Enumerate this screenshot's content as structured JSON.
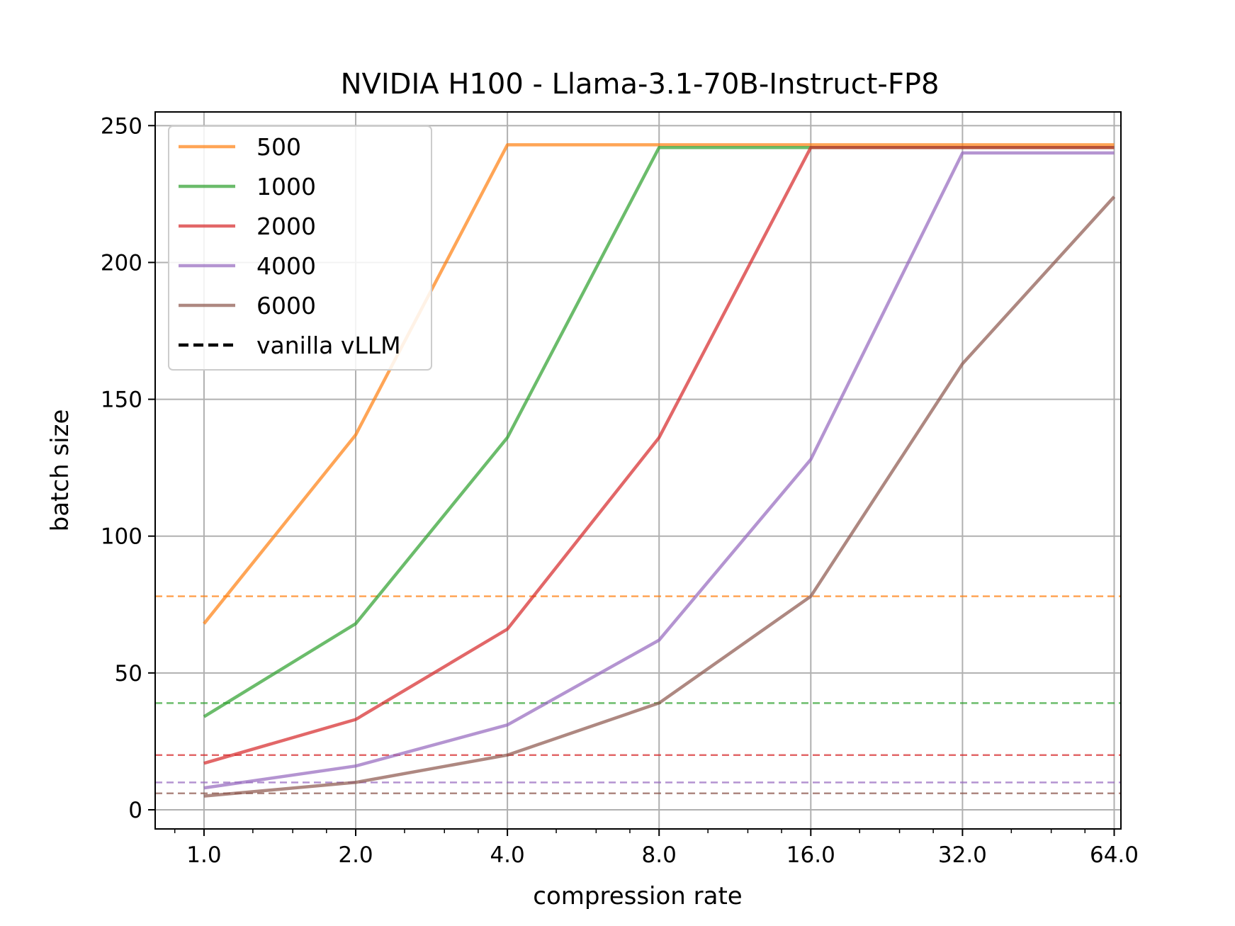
{
  "chart_data": {
    "type": "line",
    "title": "NVIDIA H100 - Llama-3.1-70B-Instruct-FP8",
    "xlabel": "compression rate",
    "ylabel": "batch size",
    "x_scale": "log2",
    "x": [
      1.0,
      2.0,
      4.0,
      8.0,
      16.0,
      32.0,
      64.0
    ],
    "x_tick_labels": [
      "1.0",
      "2.0",
      "4.0",
      "8.0",
      "16.0",
      "32.0",
      "64.0"
    ],
    "y_ticks": [
      0,
      50,
      100,
      150,
      200,
      250
    ],
    "y_tick_labels": [
      "0",
      "50",
      "100",
      "150",
      "200",
      "250"
    ],
    "xlim": [
      0.8,
      66
    ],
    "ylim": [
      -7,
      255
    ],
    "grid": true,
    "legend_position": "upper-left",
    "series": [
      {
        "name": "500",
        "color": "#ff7f0e",
        "values": [
          68,
          137,
          243,
          243,
          243,
          243,
          243
        ],
        "baseline": 78
      },
      {
        "name": "1000",
        "color": "#2ca02c",
        "values": [
          34,
          68,
          136,
          242,
          242,
          242,
          242
        ],
        "baseline": 39
      },
      {
        "name": "2000",
        "color": "#d62728",
        "values": [
          17,
          33,
          66,
          136,
          242,
          242,
          242
        ],
        "baseline": 20
      },
      {
        "name": "4000",
        "color": "#9467bd",
        "values": [
          8,
          16,
          31,
          62,
          128,
          240,
          240
        ],
        "baseline": 10
      },
      {
        "name": "6000",
        "color": "#8c564b",
        "values": [
          5,
          10,
          20,
          39,
          78,
          163,
          224
        ],
        "baseline": 6
      }
    ],
    "baseline_legend": {
      "name": "vanilla vLLM",
      "color": "#000000",
      "style": "dashed"
    }
  }
}
